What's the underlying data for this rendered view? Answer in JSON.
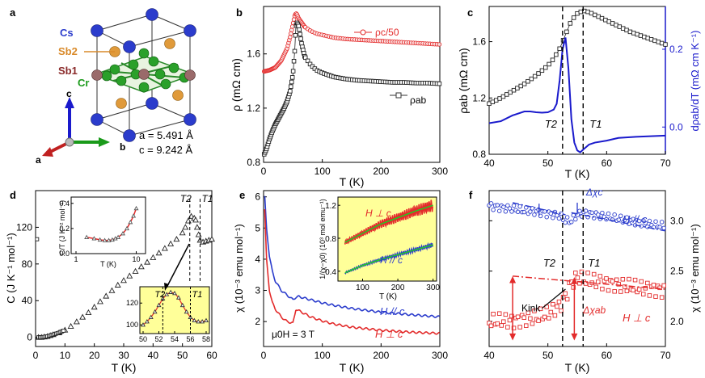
{
  "colors": {
    "red": "#e32b2b",
    "blue": "#2b3ccc",
    "black": "#222222",
    "green": "#1a9a1a",
    "orange": "#d98a2a",
    "maroon": "#8a2a2a",
    "dblue": "#1a1acc",
    "yellow": "#ffff99"
  },
  "panel_labels": [
    "a",
    "b",
    "c",
    "d",
    "e",
    "f"
  ],
  "crystal": {
    "atoms": [
      "Cs",
      "Sb2",
      "Sb1",
      "Cr"
    ],
    "axes": [
      "c",
      "a",
      "b"
    ],
    "lattice_a": "a = 5.491 Å",
    "lattice_c": "c = 9.242 Å"
  },
  "chart_data": [
    {
      "panel": "b",
      "type": "line",
      "xlabel": "T (K)",
      "ylabel": "ρ (mΩ cm)",
      "xlim": [
        0,
        300
      ],
      "ylim": [
        0.8,
        1.95
      ],
      "xticks": [
        "0",
        "100",
        "200",
        "300"
      ],
      "yticks": [
        "0.8",
        "1.2",
        "1.6"
      ],
      "series": [
        {
          "name": "ρc/50",
          "legend": "ρc/50",
          "color": "red",
          "marker": "circle",
          "x": [
            0,
            10,
            20,
            30,
            40,
            45,
            50,
            53,
            55,
            57,
            60,
            65,
            70,
            80,
            90,
            100,
            120,
            140,
            160,
            180,
            200,
            220,
            240,
            260,
            280,
            300
          ],
          "y": [
            1.47,
            1.48,
            1.5,
            1.55,
            1.64,
            1.72,
            1.82,
            1.88,
            1.9,
            1.89,
            1.86,
            1.83,
            1.8,
            1.77,
            1.75,
            1.74,
            1.72,
            1.71,
            1.705,
            1.7,
            1.695,
            1.69,
            1.685,
            1.68,
            1.675,
            1.67
          ]
        },
        {
          "name": "ρab",
          "legend": "ρab",
          "color": "black",
          "marker": "square",
          "x": [
            0,
            5,
            10,
            15,
            20,
            25,
            30,
            35,
            40,
            45,
            50,
            53,
            55,
            57,
            60,
            65,
            70,
            80,
            90,
            100,
            120,
            140,
            160,
            180,
            200,
            220,
            240,
            260,
            280,
            300
          ],
          "y": [
            0.85,
            0.9,
            0.97,
            1.03,
            1.08,
            1.12,
            1.16,
            1.2,
            1.25,
            1.32,
            1.45,
            1.62,
            1.8,
            1.83,
            1.8,
            1.67,
            1.58,
            1.52,
            1.48,
            1.46,
            1.43,
            1.415,
            1.405,
            1.4,
            1.395,
            1.39,
            1.39,
            1.385,
            1.385,
            1.38
          ]
        }
      ]
    },
    {
      "panel": "c",
      "type": "line",
      "xlabel": "T (K)",
      "ylabel": "ρab (mΩ cm)",
      "ylabel_right": "dρab/dT (mΩ cm K⁻¹)",
      "xlim": [
        40,
        70
      ],
      "ylim": [
        0.8,
        1.85
      ],
      "ylim_right": [
        -0.07,
        0.31
      ],
      "xticks": [
        "40",
        "50",
        "60",
        "70"
      ],
      "yticks": [
        "0.8",
        "1.2",
        "1.6"
      ],
      "yticks_right": [
        "0.0",
        "0.2"
      ],
      "annotations": [
        "T2",
        "T1"
      ],
      "T2": 52.5,
      "T1": 56,
      "series": [
        {
          "name": "ρab",
          "color": "black",
          "marker": "square",
          "axis": "left",
          "x": [
            40,
            42,
            44,
            46,
            48,
            50,
            51,
            52,
            53,
            54,
            55,
            56,
            57,
            58,
            60,
            62,
            64,
            66,
            68,
            70
          ],
          "y": [
            1.16,
            1.2,
            1.25,
            1.3,
            1.36,
            1.43,
            1.48,
            1.55,
            1.65,
            1.75,
            1.8,
            1.82,
            1.81,
            1.79,
            1.75,
            1.71,
            1.67,
            1.64,
            1.61,
            1.58
          ]
        },
        {
          "name": "dρab/dT",
          "color": "dblue",
          "marker": "none",
          "axis": "right",
          "x": [
            40,
            42,
            44,
            46,
            47,
            48,
            49,
            50,
            51,
            51.5,
            52,
            52.5,
            53,
            53.5,
            54,
            54.5,
            55,
            55.5,
            56,
            57,
            58,
            60,
            62,
            65,
            70
          ],
          "y": [
            0.01,
            0.015,
            0.03,
            0.04,
            0.04,
            0.038,
            0.037,
            0.038,
            0.045,
            0.06,
            0.12,
            0.2,
            0.23,
            0.15,
            0.02,
            -0.04,
            -0.06,
            -0.065,
            -0.058,
            -0.045,
            -0.04,
            -0.035,
            -0.028,
            -0.025,
            -0.022
          ]
        }
      ]
    },
    {
      "panel": "d",
      "type": "scatter",
      "xlabel": "T (K)",
      "ylabel": "C (J K⁻¹ mol⁻¹)",
      "xlim": [
        0,
        60
      ],
      "ylim": [
        -10,
        160
      ],
      "xticks": [
        "0",
        "10",
        "20",
        "30",
        "40",
        "50",
        "60"
      ],
      "yticks": [
        "0",
        "40",
        "80",
        "120"
      ],
      "annotations": [
        "T2",
        "T1"
      ],
      "series": [
        {
          "name": "C",
          "color": "black",
          "marker": "triangle",
          "x": [
            1,
            2,
            3,
            4,
            5,
            6,
            8,
            10,
            12,
            14,
            16,
            18,
            20,
            22,
            24,
            26,
            28,
            30,
            32,
            34,
            36,
            38,
            40,
            42,
            44,
            46,
            48,
            50,
            51,
            52,
            53,
            54,
            54.5,
            55,
            55.5,
            56,
            57,
            58,
            59,
            60
          ],
          "y": [
            0,
            0,
            0.5,
            1,
            2,
            3,
            5,
            8,
            12,
            17,
            22,
            27,
            33,
            39,
            45,
            51,
            57,
            62,
            67,
            72,
            77,
            82,
            87,
            92,
            97,
            102,
            107,
            114,
            120,
            127,
            132,
            130,
            128,
            120,
            112,
            106,
            104,
            105,
            106,
            107
          ]
        }
      ],
      "inset_top": {
        "xlabel": "T (K)",
        "ylabel": "C/T (J K⁻² mol⁻¹)",
        "xticks": [
          "1",
          "10"
        ],
        "yticks": [
          "0.0",
          "0.2",
          "0.4"
        ],
        "x": [
          1.5,
          2,
          2.5,
          3,
          3.5,
          4,
          4.5,
          5,
          6,
          7,
          8,
          9,
          10
        ],
        "y": [
          0.13,
          0.12,
          0.11,
          0.105,
          0.105,
          0.11,
          0.12,
          0.13,
          0.16,
          0.2,
          0.25,
          0.3,
          0.36
        ]
      },
      "inset_bottom": {
        "xticks": [
          "50",
          "52",
          "54",
          "56",
          "58"
        ],
        "yticks": [
          "100",
          "120"
        ],
        "annotations": [
          "T2",
          "T1"
        ],
        "x": [
          50,
          50.5,
          51,
          51.5,
          52,
          52.5,
          53,
          53.5,
          54,
          54.5,
          55,
          55.5,
          56,
          56.5,
          57,
          57.5,
          58
        ],
        "y": [
          100,
          103,
          107,
          112,
          118,
          124,
          128,
          130,
          129,
          125,
          118,
          112,
          107,
          104,
          103,
          103,
          104
        ]
      }
    },
    {
      "panel": "e",
      "type": "line",
      "xlabel": "T (K)",
      "ylabel": "χ (10⁻³ emu mol⁻¹)",
      "xlim": [
        0,
        300
      ],
      "ylim": [
        1.2,
        6.2
      ],
      "xticks": [
        "0",
        "100",
        "200",
        "300"
      ],
      "yticks": [
        "2",
        "3",
        "4",
        "5",
        "6"
      ],
      "field": "μ0H = 3 T",
      "series": [
        {
          "name": "H // c",
          "color": "blue",
          "x": [
            2,
            5,
            10,
            15,
            20,
            30,
            40,
            50,
            55,
            60,
            70,
            80,
            100,
            120,
            150,
            200,
            250,
            300
          ],
          "y": [
            6.0,
            5.0,
            4.1,
            3.6,
            3.3,
            3.0,
            2.85,
            2.7,
            2.78,
            2.8,
            2.75,
            2.7,
            2.6,
            2.52,
            2.42,
            2.3,
            2.22,
            2.15
          ]
        },
        {
          "name": "H ⊥ c",
          "color": "red",
          "x": [
            2,
            5,
            10,
            15,
            20,
            30,
            40,
            50,
            53,
            55,
            60,
            70,
            80,
            100,
            120,
            150,
            200,
            250,
            300
          ],
          "y": [
            5.6,
            4.0,
            3.0,
            2.6,
            2.4,
            2.15,
            2.0,
            1.95,
            2.2,
            2.4,
            2.35,
            2.25,
            2.15,
            2.02,
            1.92,
            1.82,
            1.72,
            1.66,
            1.62
          ]
        }
      ],
      "inset": {
        "xlabel": "T (K)",
        "ylabel": "1/(χ−χ0) (10³ mol emu⁻¹)",
        "xticks": [
          "100",
          "200",
          "300"
        ],
        "yticks": [
          "0.4",
          "0.8",
          "1.2"
        ],
        "series": [
          {
            "name": "H ⊥ c",
            "x": [
              50,
              100,
              150,
              200,
              250,
              300
            ],
            "y": [
              0.75,
              0.86,
              0.97,
              1.05,
              1.13,
              1.2
            ]
          },
          {
            "name": "H // c",
            "x": [
              50,
              100,
              150,
              200,
              250,
              300
            ],
            "y": [
              0.38,
              0.47,
              0.54,
              0.6,
              0.66,
              0.72
            ]
          }
        ]
      }
    },
    {
      "panel": "f",
      "type": "scatter",
      "xlabel": "T (K)",
      "ylabel": "χ (10⁻³ emu mol⁻¹)",
      "xlim": [
        40,
        70
      ],
      "ylim": [
        1.75,
        3.3
      ],
      "xticks": [
        "40",
        "50",
        "60",
        "70"
      ],
      "yticks": [
        "2.0",
        "2.5",
        "3.0"
      ],
      "annotations": [
        "T2",
        "T1",
        "Kink",
        "Δχc",
        "Δχab"
      ],
      "series": [
        {
          "name": "H // c",
          "color": "blue",
          "x": [
            40,
            42,
            44,
            46,
            48,
            50,
            52,
            53,
            54,
            55,
            56,
            58,
            60,
            62,
            64,
            66,
            68,
            70
          ],
          "y": [
            3.15,
            3.13,
            3.12,
            3.1,
            3.09,
            3.07,
            3.05,
            3.0,
            3.0,
            3.06,
            3.08,
            3.06,
            3.04,
            3.02,
            3.0,
            2.98,
            2.96,
            2.95
          ]
        },
        {
          "name": "H ⊥ c",
          "color": "red",
          "x": [
            40,
            42,
            44,
            46,
            48,
            50,
            52,
            53,
            54,
            55,
            56,
            58,
            60,
            62,
            64,
            66,
            68,
            70
          ],
          "y": [
            2.0,
            2.01,
            2.0,
            2.02,
            2.04,
            2.08,
            2.15,
            2.25,
            2.38,
            2.44,
            2.42,
            2.4,
            2.38,
            2.36,
            2.35,
            2.33,
            2.32,
            2.3
          ]
        }
      ]
    }
  ]
}
